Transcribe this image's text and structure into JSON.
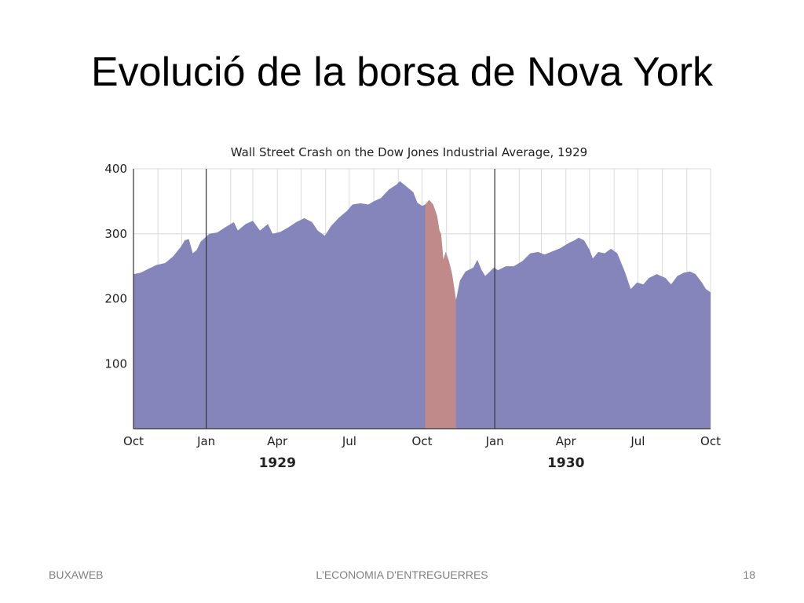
{
  "slide": {
    "title": "Evolució de la borsa de Nova York",
    "footer_left": "BUXAWEB",
    "footer_center": "L'ECONOMIA D'ENTREGUERRES",
    "footer_right": "18"
  },
  "colors": {
    "area": "#8585bc",
    "crash": "#c08a8a",
    "grid": "#d9d9d9",
    "axis": "#333333"
  },
  "chart_data": {
    "type": "area",
    "title": "Wall Street Crash on the Dow Jones Industrial Average, 1929",
    "xlabel": "",
    "ylabel": "",
    "ylim": [
      0,
      400
    ],
    "xlim": [
      "1928-10-01",
      "1930-10-01"
    ],
    "yticks": [
      100,
      200,
      300,
      400
    ],
    "xticks": [
      {
        "date": "1928-10-01",
        "label": "Oct"
      },
      {
        "date": "1929-01-01",
        "label": "Jan"
      },
      {
        "date": "1929-04-01",
        "label": "Apr"
      },
      {
        "date": "1929-07-01",
        "label": "Jul"
      },
      {
        "date": "1929-10-01",
        "label": "Oct"
      },
      {
        "date": "1930-01-01",
        "label": "Jan"
      },
      {
        "date": "1930-04-01",
        "label": "Apr"
      },
      {
        "date": "1930-07-01",
        "label": "Jul"
      },
      {
        "date": "1930-10-01",
        "label": "Oct"
      }
    ],
    "year_labels": [
      {
        "date": "1929-04-01",
        "label": "1929"
      },
      {
        "date": "1930-04-01",
        "label": "1930"
      }
    ],
    "year_dividers": [
      "1929-01-01",
      "1930-01-01"
    ],
    "grid": true,
    "crash_period": [
      "1929-10-05",
      "1929-11-13"
    ],
    "series": [
      {
        "values": [
          [
            "1928-10-01",
            238
          ],
          [
            "1928-10-10",
            240
          ],
          [
            "1928-10-20",
            246
          ],
          [
            "1928-10-30",
            252
          ],
          [
            "1928-11-10",
            255
          ],
          [
            "1928-11-20",
            265
          ],
          [
            "1928-11-30",
            280
          ],
          [
            "1928-12-05",
            290
          ],
          [
            "1928-12-10",
            292
          ],
          [
            "1928-12-15",
            270
          ],
          [
            "1928-12-20",
            275
          ],
          [
            "1928-12-25",
            288
          ],
          [
            "1929-01-05",
            300
          ],
          [
            "1929-01-15",
            302
          ],
          [
            "1929-01-25",
            310
          ],
          [
            "1929-02-05",
            318
          ],
          [
            "1929-02-10",
            305
          ],
          [
            "1929-02-20",
            315
          ],
          [
            "1929-03-01",
            320
          ],
          [
            "1929-03-10",
            305
          ],
          [
            "1929-03-20",
            315
          ],
          [
            "1929-03-26",
            300
          ],
          [
            "1929-04-05",
            303
          ],
          [
            "1929-04-15",
            310
          ],
          [
            "1929-04-25",
            318
          ],
          [
            "1929-05-05",
            324
          ],
          [
            "1929-05-15",
            318
          ],
          [
            "1929-05-22",
            305
          ],
          [
            "1929-05-31",
            297
          ],
          [
            "1929-06-08",
            312
          ],
          [
            "1929-06-18",
            325
          ],
          [
            "1929-06-28",
            335
          ],
          [
            "1929-07-05",
            345
          ],
          [
            "1929-07-15",
            347
          ],
          [
            "1929-07-25",
            345
          ],
          [
            "1929-08-01",
            350
          ],
          [
            "1929-08-10",
            355
          ],
          [
            "1929-08-20",
            368
          ],
          [
            "1929-08-30",
            376
          ],
          [
            "1929-09-03",
            381
          ],
          [
            "1929-09-10",
            374
          ],
          [
            "1929-09-20",
            364
          ],
          [
            "1929-09-25",
            348
          ],
          [
            "1929-10-01",
            343
          ],
          [
            "1929-10-05",
            345
          ],
          [
            "1929-10-10",
            352
          ],
          [
            "1929-10-15",
            345
          ],
          [
            "1929-10-20",
            328
          ],
          [
            "1929-10-23",
            305
          ],
          [
            "1929-10-25",
            300
          ],
          [
            "1929-10-28",
            260
          ],
          [
            "1929-10-31",
            272
          ],
          [
            "1929-11-04",
            258
          ],
          [
            "1929-11-08",
            238
          ],
          [
            "1929-11-13",
            198
          ],
          [
            "1929-11-18",
            228
          ],
          [
            "1929-11-25",
            242
          ],
          [
            "1929-12-05",
            248
          ],
          [
            "1929-12-10",
            260
          ],
          [
            "1929-12-15",
            245
          ],
          [
            "1929-12-20",
            235
          ],
          [
            "1929-12-31",
            248
          ],
          [
            "1930-01-05",
            244
          ],
          [
            "1930-01-15",
            250
          ],
          [
            "1930-01-25",
            250
          ],
          [
            "1930-02-05",
            258
          ],
          [
            "1930-02-15",
            270
          ],
          [
            "1930-02-25",
            272
          ],
          [
            "1930-03-05",
            268
          ],
          [
            "1930-03-15",
            273
          ],
          [
            "1930-03-25",
            278
          ],
          [
            "1930-04-05",
            286
          ],
          [
            "1930-04-12",
            290
          ],
          [
            "1930-04-17",
            294
          ],
          [
            "1930-04-24",
            290
          ],
          [
            "1930-05-01",
            275
          ],
          [
            "1930-05-05",
            262
          ],
          [
            "1930-05-12",
            272
          ],
          [
            "1930-05-20",
            270
          ],
          [
            "1930-05-28",
            277
          ],
          [
            "1930-06-05",
            270
          ],
          [
            "1930-06-15",
            240
          ],
          [
            "1930-06-22",
            215
          ],
          [
            "1930-06-30",
            225
          ],
          [
            "1930-07-08",
            222
          ],
          [
            "1930-07-15",
            232
          ],
          [
            "1930-07-25",
            238
          ],
          [
            "1930-08-05",
            232
          ],
          [
            "1930-08-12",
            222
          ],
          [
            "1930-08-20",
            235
          ],
          [
            "1930-08-28",
            240
          ],
          [
            "1930-09-05",
            242
          ],
          [
            "1930-09-12",
            238
          ],
          [
            "1930-09-20",
            225
          ],
          [
            "1930-09-25",
            215
          ],
          [
            "1930-10-01",
            210
          ]
        ]
      }
    ]
  }
}
